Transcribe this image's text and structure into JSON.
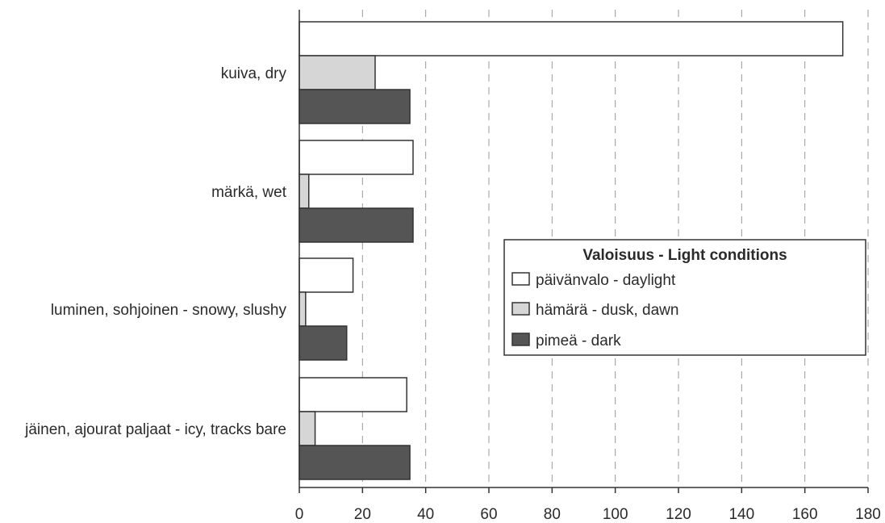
{
  "chart_data": {
    "type": "bar",
    "orientation": "horizontal",
    "categories": [
      "kuiva, dry",
      "märkä, wet",
      "luminen, sohjoinen - snowy, slushy",
      "jäinen, ajourat paljaat - icy, tracks bare"
    ],
    "series": [
      {
        "name": "päivänvalo - daylight",
        "values": [
          172,
          36,
          17,
          34
        ],
        "color": "#ffffff"
      },
      {
        "name": "hämärä - dusk, dawn",
        "values": [
          24,
          3,
          2,
          5
        ],
        "color": "#d6d6d6"
      },
      {
        "name": "pimeä - dark",
        "values": [
          35,
          36,
          15,
          35
        ],
        "color": "#555555"
      }
    ],
    "xlim": [
      0,
      180
    ],
    "xticks": [
      "0",
      "20",
      "40",
      "60",
      "80",
      "100",
      "120",
      "140",
      "160",
      "180"
    ],
    "grid": "vertical dashed",
    "legend": {
      "title": "Valoisuus - Light conditions",
      "placement": "center-right"
    }
  }
}
